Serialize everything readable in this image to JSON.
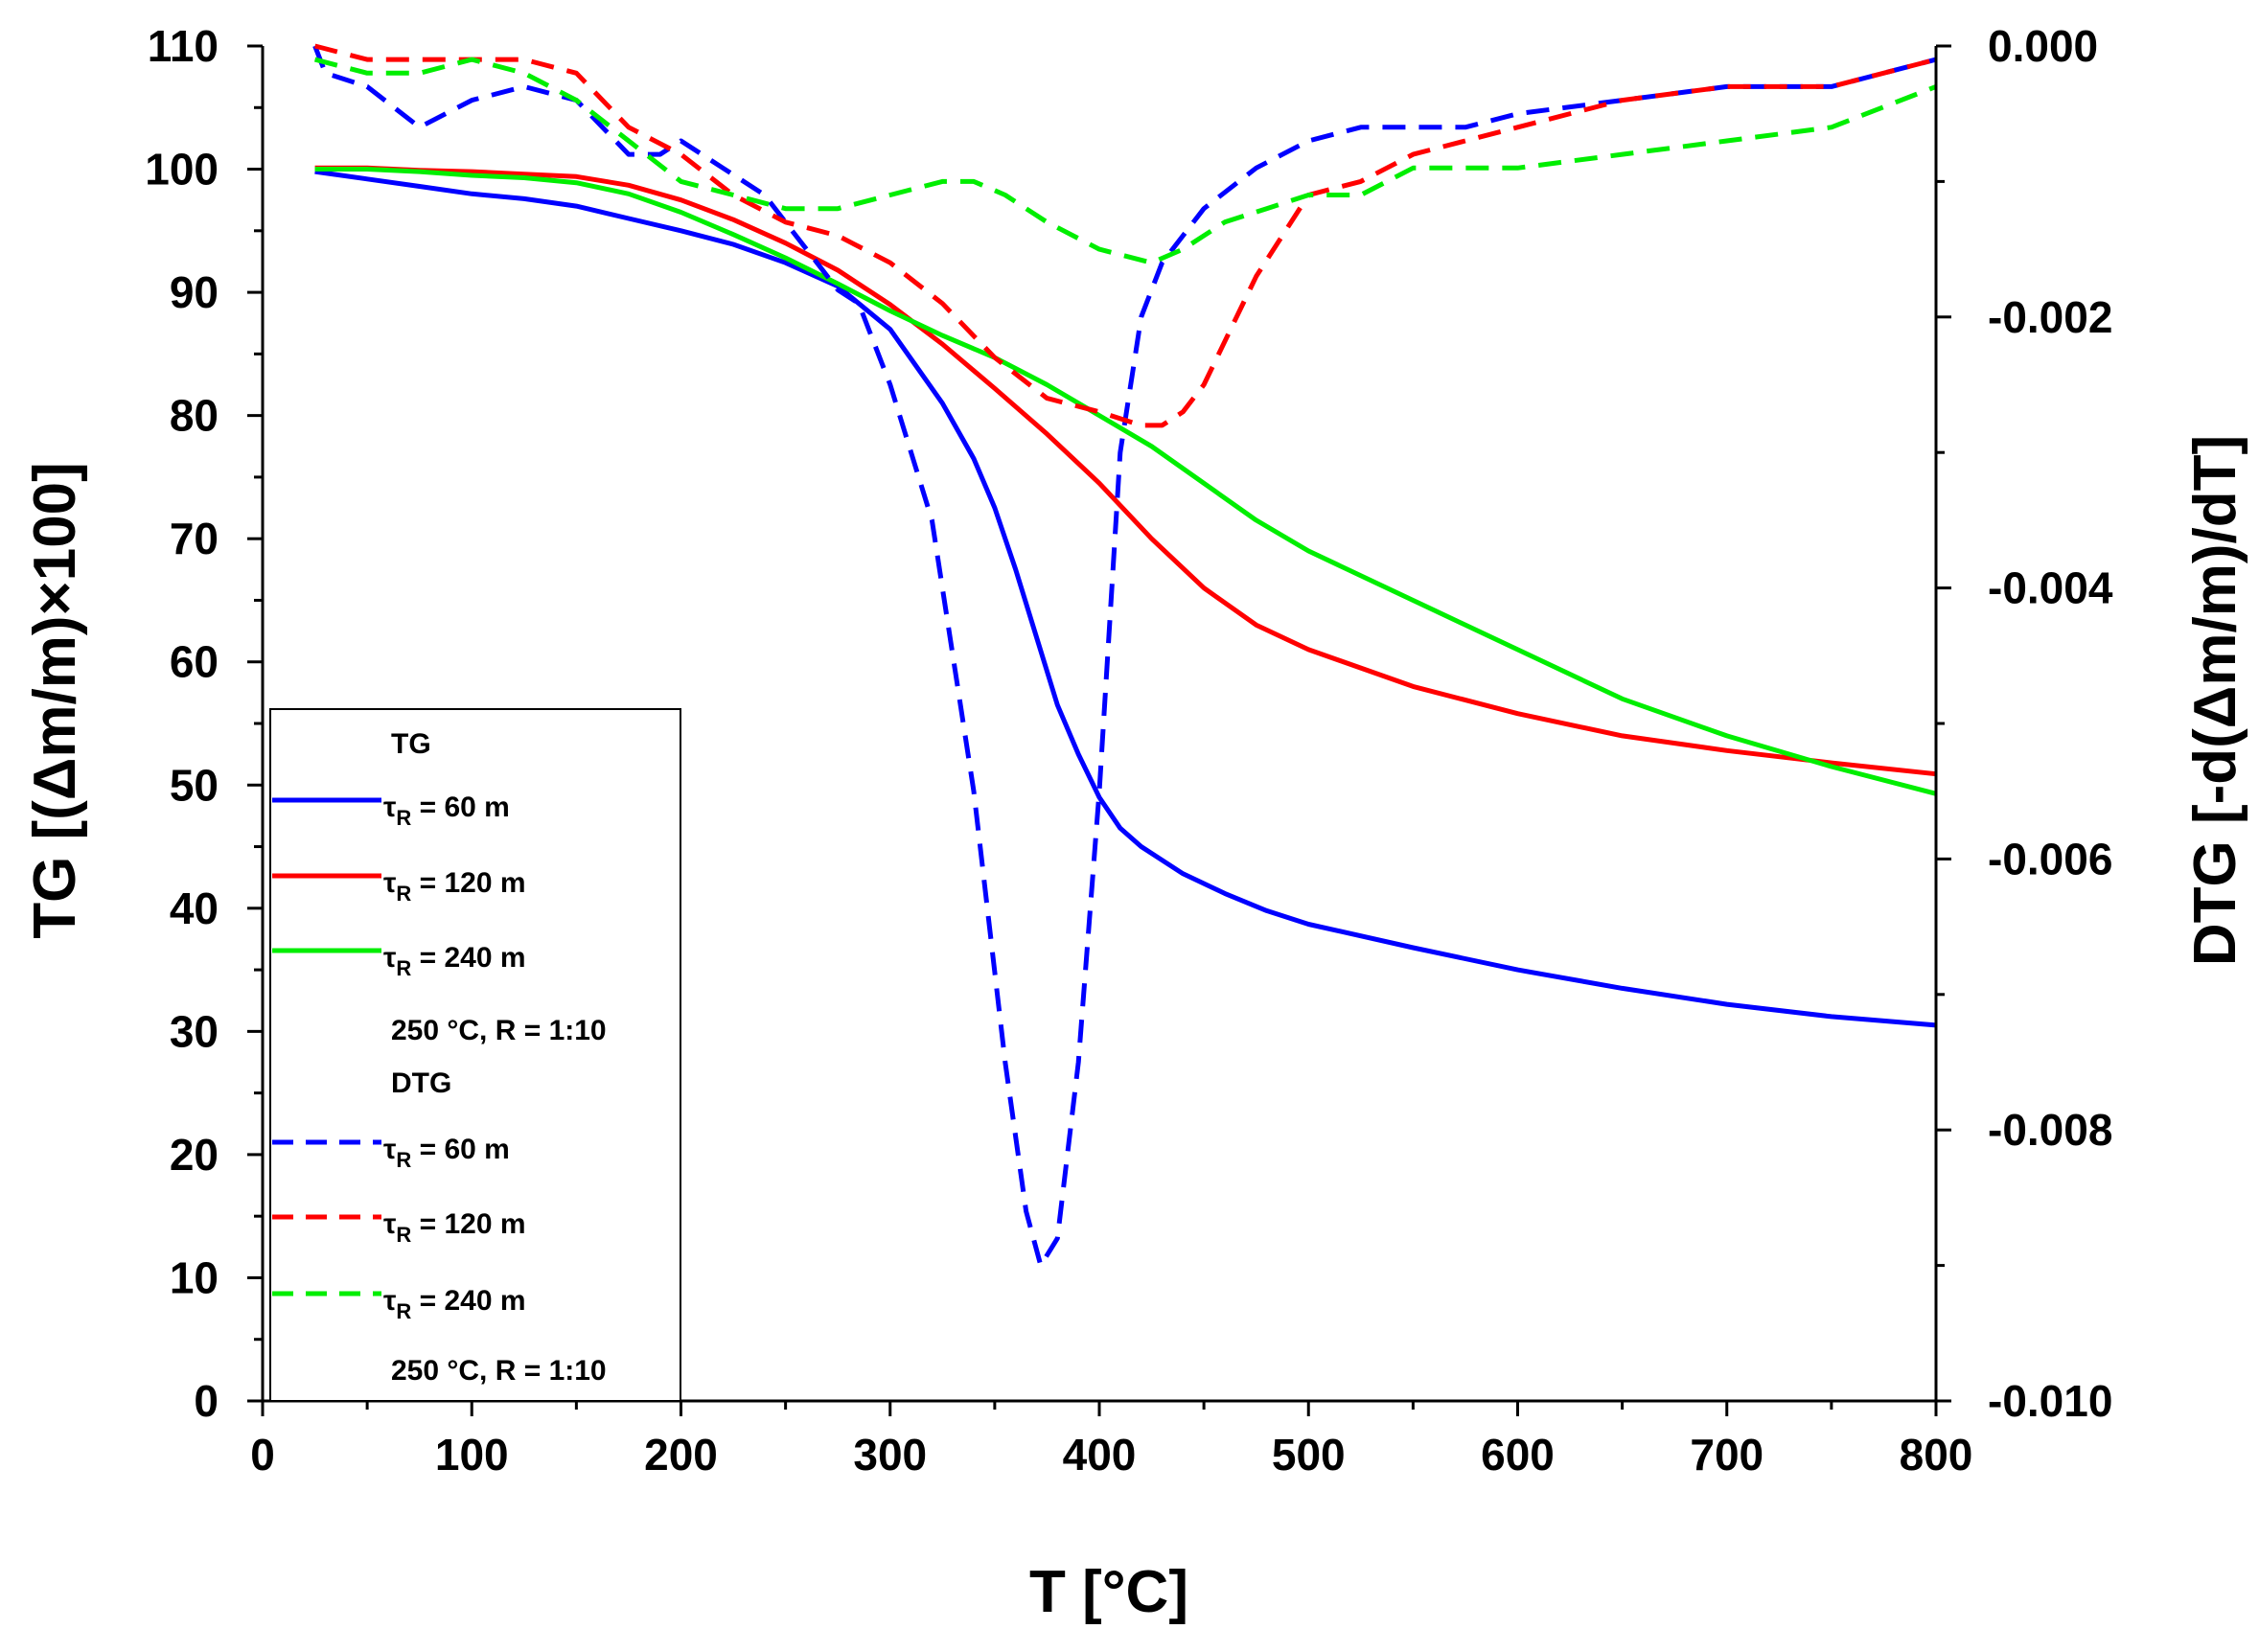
{
  "chart_data": {
    "type": "line",
    "title": "",
    "xlabel": "T [°C]",
    "ylabel_left": "TG [(Δm/m)×100]",
    "ylabel_right": "DTG [-d(Δm/m)/dT]",
    "xlim": [
      0,
      800
    ],
    "ylim_left": [
      0,
      110
    ],
    "ylim_right": [
      -0.01,
      0.0
    ],
    "x_ticks": [
      "0",
      "100",
      "200",
      "300",
      "400",
      "500",
      "600",
      "700",
      "800"
    ],
    "y_left_ticks": [
      "0",
      "10",
      "20",
      "30",
      "40",
      "50",
      "60",
      "70",
      "80",
      "90",
      "100",
      "110"
    ],
    "y_right_ticks": [
      "0.000",
      "-0.002",
      "-0.004",
      "-0.006",
      "-0.008",
      "-0.010"
    ],
    "colors": {
      "tau60": "#0000ff",
      "tau120": "#ff0000",
      "tau240": "#00ee00"
    },
    "series": [
      {
        "name": "TG τR = 60 m",
        "group": "TG",
        "axis": "left",
        "style": "solid",
        "color": "#0000ff",
        "x": [
          25,
          50,
          75,
          100,
          125,
          150,
          175,
          200,
          225,
          250,
          275,
          300,
          325,
          340,
          350,
          360,
          370,
          380,
          390,
          400,
          410,
          420,
          440,
          460,
          480,
          500,
          550,
          600,
          650,
          700,
          750,
          800
        ],
        "y": [
          99.8,
          99.2,
          98.6,
          98.0,
          97.6,
          97.0,
          96.0,
          95.0,
          93.9,
          92.4,
          90.5,
          87.0,
          81.0,
          76.5,
          72.5,
          67.5,
          62.0,
          56.5,
          52.5,
          49.0,
          46.5,
          45.0,
          42.8,
          41.2,
          39.8,
          38.7,
          36.8,
          35.0,
          33.5,
          32.2,
          31.2,
          30.5
        ]
      },
      {
        "name": "TG τR = 120 m",
        "group": "TG",
        "axis": "left",
        "style": "solid",
        "color": "#ff0000",
        "x": [
          25,
          50,
          75,
          100,
          125,
          150,
          175,
          200,
          225,
          250,
          275,
          300,
          325,
          350,
          375,
          400,
          425,
          450,
          475,
          500,
          550,
          600,
          650,
          700,
          750,
          800
        ],
        "y": [
          100.1,
          100.1,
          99.9,
          99.8,
          99.6,
          99.4,
          98.7,
          97.5,
          95.9,
          94.0,
          91.8,
          89.0,
          85.8,
          82.2,
          78.5,
          74.5,
          70.0,
          66.0,
          63.0,
          61.0,
          58.0,
          55.8,
          54.0,
          52.8,
          51.8,
          50.9
        ]
      },
      {
        "name": "TG τR = 240 m",
        "group": "TG",
        "axis": "left",
        "style": "solid",
        "color": "#00ee00",
        "x": [
          25,
          50,
          75,
          100,
          125,
          150,
          175,
          200,
          225,
          250,
          275,
          300,
          325,
          350,
          375,
          400,
          425,
          450,
          475,
          500,
          550,
          600,
          650,
          700,
          750,
          800
        ],
        "y": [
          100.0,
          100.0,
          99.8,
          99.5,
          99.3,
          98.9,
          98.0,
          96.5,
          94.7,
          92.8,
          90.7,
          88.5,
          86.5,
          84.7,
          82.5,
          80.0,
          77.5,
          74.5,
          71.5,
          69.0,
          65.0,
          61.0,
          57.0,
          54.0,
          51.5,
          49.3
        ]
      },
      {
        "name": "DTG τR = 60 m",
        "group": "DTG",
        "axis": "right",
        "style": "dashed",
        "color": "#0000ff",
        "x": [
          25,
          30,
          50,
          75,
          100,
          125,
          150,
          175,
          190,
          200,
          220,
          240,
          255,
          265,
          275,
          285,
          300,
          320,
          340,
          355,
          365,
          372,
          380,
          390,
          400,
          410,
          420,
          430,
          450,
          475,
          500,
          525,
          550,
          575,
          600,
          650,
          700,
          750,
          800
        ],
        "y": [
          0.0,
          -0.0002,
          -0.0003,
          -0.0006,
          -0.0004,
          -0.0003,
          -0.0004,
          -0.0008,
          -0.0008,
          -0.0007,
          -0.0009,
          -0.0011,
          -0.0014,
          -0.0016,
          -0.0018,
          -0.0019,
          -0.0025,
          -0.0035,
          -0.0055,
          -0.0075,
          -0.0086,
          -0.009,
          -0.0088,
          -0.0075,
          -0.0055,
          -0.003,
          -0.002,
          -0.0016,
          -0.0012,
          -0.0009,
          -0.0007,
          -0.0006,
          -0.0006,
          -0.0006,
          -0.0005,
          -0.0004,
          -0.0003,
          -0.0003,
          -0.0001
        ]
      },
      {
        "name": "DTG τR = 120 m",
        "group": "DTG",
        "axis": "right",
        "style": "dashed",
        "color": "#ff0000",
        "x": [
          25,
          50,
          75,
          100,
          125,
          150,
          175,
          200,
          225,
          250,
          275,
          300,
          325,
          350,
          375,
          400,
          420,
          430,
          440,
          450,
          475,
          500,
          525,
          550,
          575,
          600,
          650,
          700,
          750,
          800
        ],
        "y": [
          0.0,
          -0.0001,
          -0.0001,
          -0.0001,
          -0.0001,
          -0.0002,
          -0.0006,
          -0.0008,
          -0.0011,
          -0.0013,
          -0.0014,
          -0.0016,
          -0.0019,
          -0.0023,
          -0.0026,
          -0.0027,
          -0.0028,
          -0.0028,
          -0.0027,
          -0.0025,
          -0.0017,
          -0.0011,
          -0.001,
          -0.0008,
          -0.0007,
          -0.0006,
          -0.0004,
          -0.0003,
          -0.0003,
          -0.0001
        ]
      },
      {
        "name": "DTG τR = 240 m",
        "group": "DTG",
        "axis": "right",
        "style": "dashed",
        "color": "#00ee00",
        "x": [
          25,
          50,
          75,
          100,
          125,
          150,
          175,
          200,
          225,
          250,
          275,
          300,
          325,
          340,
          355,
          375,
          400,
          425,
          440,
          460,
          480,
          500,
          525,
          550,
          575,
          600,
          650,
          700,
          750,
          800
        ],
        "y": [
          -0.0001,
          -0.0002,
          -0.0002,
          -0.0001,
          -0.0002,
          -0.0004,
          -0.0007,
          -0.001,
          -0.0011,
          -0.0012,
          -0.0012,
          -0.0011,
          -0.001,
          -0.001,
          -0.0011,
          -0.0013,
          -0.0015,
          -0.0016,
          -0.0015,
          -0.0013,
          -0.0012,
          -0.0011,
          -0.0011,
          -0.0009,
          -0.0009,
          -0.0009,
          -0.0008,
          -0.0007,
          -0.0006,
          -0.0003
        ]
      }
    ],
    "legend": {
      "placement": "bottom-left",
      "tg_header": "TG",
      "dtg_header": "DTG",
      "entries": [
        {
          "tau": "τ",
          "sub": "R",
          "text": " = 60 m"
        },
        {
          "tau": "τ",
          "sub": "R",
          "text": " = 120 m"
        },
        {
          "tau": "τ",
          "sub": "R",
          "text": " = 240 m"
        }
      ],
      "condition": "250 °C, R = 1:10"
    }
  }
}
